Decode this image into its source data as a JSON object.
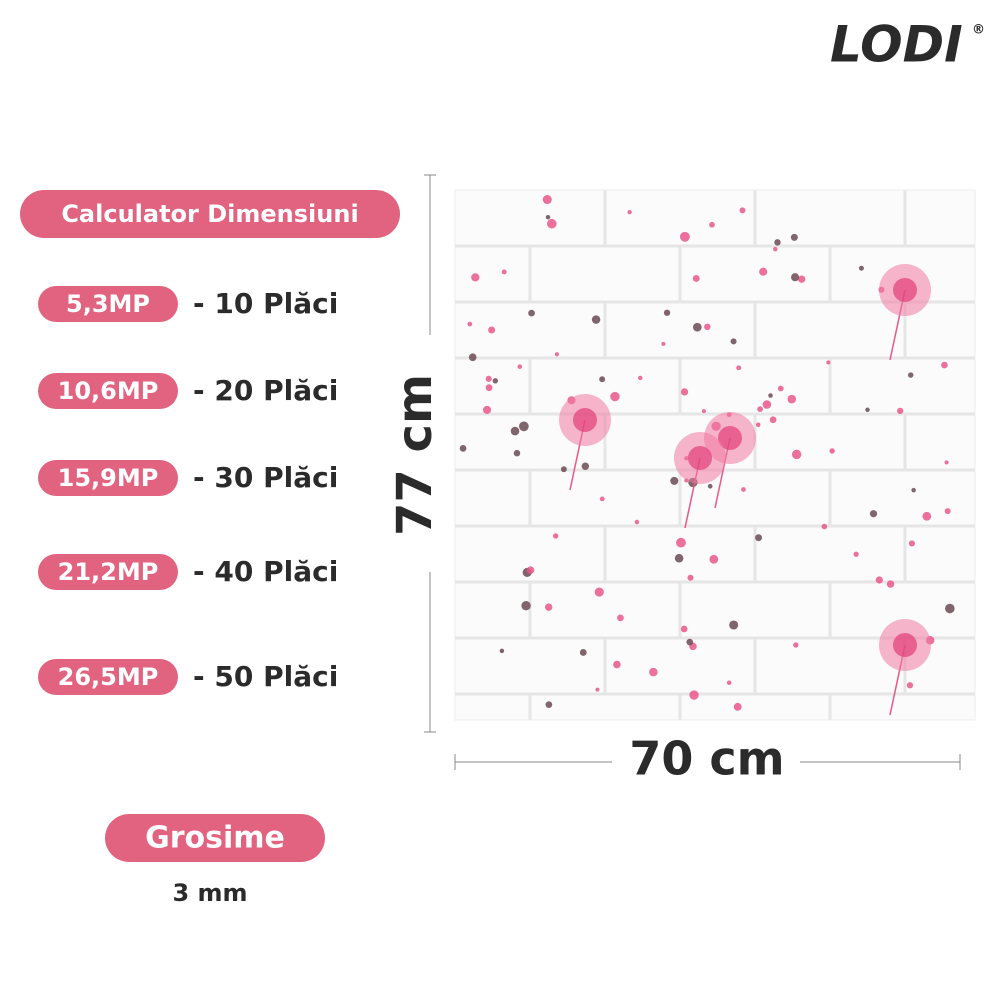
{
  "brand": {
    "name": "LODI",
    "mark": "®"
  },
  "calculator": {
    "title": "Calculator Dimensiuni",
    "rows": [
      {
        "area": "5,3MP",
        "count": "- 10 Plăci"
      },
      {
        "area": "10,6MP",
        "count": "- 20 Plăci"
      },
      {
        "area": "15,9MP",
        "count": "- 30 Plăci"
      },
      {
        "area": "21,2MP",
        "count": "- 40 Plăci"
      },
      {
        "area": "26,5MP",
        "count": "- 50 Plăci"
      }
    ]
  },
  "thickness": {
    "label": "Grosime",
    "value": "3 mm"
  },
  "dimensions": {
    "height": "77 cm",
    "width": "70 cm"
  }
}
